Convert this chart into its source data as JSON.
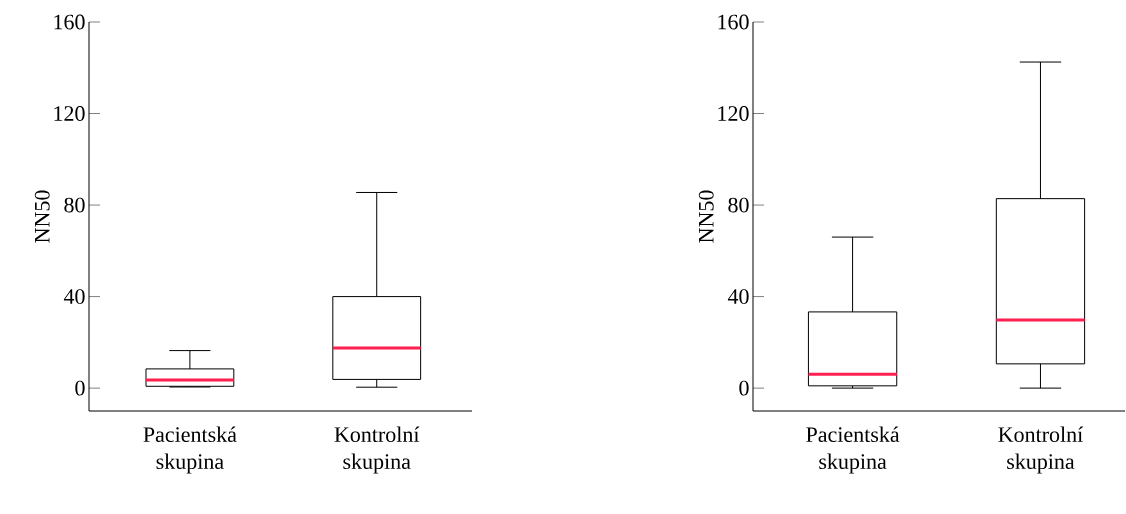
{
  "chart_data": [
    {
      "type": "box",
      "ylabel": "NN50",
      "categories": [
        "Pacientská skupina",
        "Kontrolní skupina"
      ],
      "ylim": [
        -10,
        160
      ],
      "yticks": [
        0,
        40,
        80,
        120,
        160
      ],
      "series": [
        {
          "color": "#000000",
          "boxes": [
            {
              "low": 0.5,
              "q1": 0.8,
              "median": 3.6,
              "q3": 8.4,
              "high": 16.4
            },
            {
              "low": 0.4,
              "q1": 3.8,
              "median": 17.5,
              "q3": 40,
              "high": 85.5
            }
          ]
        }
      ]
    },
    {
      "type": "box",
      "ylabel": "NN50",
      "categories": [
        "Pacientská skupina",
        "Kontrolní skupina"
      ],
      "ylim": [
        -10,
        160
      ],
      "yticks": [
        0,
        40,
        80,
        120,
        160
      ],
      "series": [
        {
          "color": "#000000",
          "boxes": [
            {
              "low": 0,
              "q1": 1,
              "median": 6.1,
              "q3": 33.3,
              "high": 66
            },
            {
              "low": 0,
              "q1": 10.6,
              "median": 29.8,
              "q3": 82.8,
              "high": 142.5
            }
          ]
        }
      ]
    }
  ]
}
